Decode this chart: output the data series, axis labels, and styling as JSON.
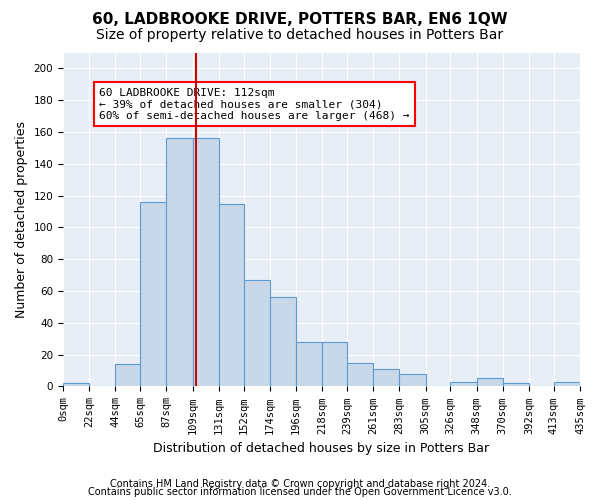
{
  "title": "60, LADBROOKE DRIVE, POTTERS BAR, EN6 1QW",
  "subtitle": "Size of property relative to detached houses in Potters Bar",
  "xlabel": "Distribution of detached houses by size in Potters Bar",
  "ylabel": "Number of detached properties",
  "bar_color": "#c8d8e8",
  "bar_edge_color": "#5b9bd5",
  "background_color": "#e8eef5",
  "grid_color": "#ffffff",
  "bin_edges": [
    0,
    22,
    44,
    65,
    87,
    109,
    131,
    152,
    174,
    196,
    218,
    239,
    261,
    283,
    305,
    326,
    348,
    370,
    392,
    413,
    435
  ],
  "bin_labels": [
    "0sqm",
    "22sqm",
    "44sqm",
    "65sqm",
    "87sqm",
    "109sqm",
    "131sqm",
    "152sqm",
    "174sqm",
    "196sqm",
    "218sqm",
    "239sqm",
    "261sqm",
    "283sqm",
    "305sqm",
    "326sqm",
    "348sqm",
    "370sqm",
    "392sqm",
    "413sqm",
    "435sqm"
  ],
  "bar_heights": [
    2,
    0,
    14,
    116,
    156,
    156,
    115,
    67,
    56,
    28,
    28,
    15,
    11,
    8,
    0,
    3,
    5,
    2,
    0,
    3
  ],
  "vline_x": 112,
  "vline_color": "#cc0000",
  "annotation_line1": "60 LADBROOKE DRIVE: 112sqm",
  "annotation_line2": "← 39% of detached houses are smaller (304)",
  "annotation_line3": "60% of semi-detached houses are larger (468) →",
  "ylim": [
    0,
    210
  ],
  "yticks": [
    0,
    20,
    40,
    60,
    80,
    100,
    120,
    140,
    160,
    180,
    200
  ],
  "footer_line1": "Contains HM Land Registry data © Crown copyright and database right 2024.",
  "footer_line2": "Contains public sector information licensed under the Open Government Licence v3.0.",
  "title_fontsize": 11,
  "subtitle_fontsize": 10,
  "axis_label_fontsize": 9,
  "tick_fontsize": 7.5,
  "annotation_fontsize": 8,
  "footer_fontsize": 7
}
